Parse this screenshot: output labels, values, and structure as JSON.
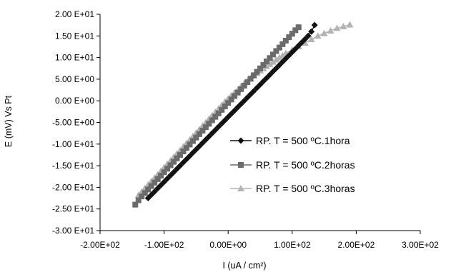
{
  "chart_data": {
    "type": "line",
    "xlabel": "I (uA / cm²)",
    "ylabel": "E (mV) Vs Pt",
    "xlim": [
      -200,
      300
    ],
    "ylim": [
      -30,
      20
    ],
    "x_ticks": [
      -200,
      -100,
      0,
      100,
      200,
      300
    ],
    "y_ticks": [
      20,
      15,
      10,
      5,
      0,
      -5,
      -10,
      -15,
      -20,
      -25,
      -30
    ],
    "x_tick_labels": [
      "-2.00E+02",
      "-1.00E+02",
      "0.00E+00",
      "1.00E+02",
      "2.00E+02",
      "3.00E+02"
    ],
    "y_tick_labels": [
      "2.00 E+01",
      "1.50 E+01",
      "1.00 E+01",
      "5.00 E+00",
      "0.00 E+00",
      "-5.00 E+00",
      "-1.00 E+01",
      "-1.50 E+01",
      "-2.00 E+01",
      "-2.50 E+01",
      "-3.00 E+01"
    ],
    "grid": false,
    "legend_position": "right",
    "series": [
      {
        "name": "RP. T = 500 ºC.1hora",
        "marker": "diamond",
        "color": "#111111",
        "x": [
          -125,
          -120,
          -115,
          -110,
          -105,
          -100,
          -95,
          -90,
          -85,
          -80,
          -75,
          -70,
          -65,
          -60,
          -55,
          -50,
          -45,
          -40,
          -35,
          -30,
          -25,
          -20,
          -15,
          -10,
          -5,
          0,
          5,
          10,
          15,
          20,
          25,
          30,
          35,
          40,
          45,
          50,
          55,
          60,
          65,
          70,
          75,
          80,
          85,
          90,
          95,
          100,
          105,
          110,
          115,
          120,
          125,
          130,
          135
        ],
        "y": [
          -22.5,
          -21.75,
          -21.0,
          -20.25,
          -19.5,
          -18.75,
          -18.0,
          -17.25,
          -16.5,
          -15.75,
          -15.0,
          -14.25,
          -13.5,
          -12.75,
          -12.0,
          -11.25,
          -10.5,
          -9.75,
          -9.0,
          -8.25,
          -7.5,
          -6.75,
          -6.0,
          -5.25,
          -4.5,
          -3.75,
          -3.0,
          -2.25,
          -1.5,
          -0.75,
          0.0,
          0.75,
          1.5,
          2.25,
          3.0,
          3.75,
          4.5,
          5.25,
          6.0,
          6.75,
          7.5,
          8.25,
          9.0,
          9.75,
          10.5,
          11.25,
          12.0,
          12.75,
          13.5,
          14.25,
          15.0,
          16.0,
          17.5
        ]
      },
      {
        "name": "RP. T = 500 ºC.2horas",
        "marker": "square",
        "color": "#6b6b6b",
        "x": [
          -145,
          -140,
          -135,
          -130,
          -125,
          -120,
          -115,
          -110,
          -105,
          -100,
          -95,
          -90,
          -85,
          -80,
          -75,
          -70,
          -65,
          -60,
          -55,
          -50,
          -45,
          -40,
          -35,
          -30,
          -25,
          -20,
          -15,
          -10,
          -5,
          0,
          5,
          10,
          15,
          20,
          25,
          30,
          35,
          40,
          45,
          50,
          55,
          60,
          65,
          70,
          75,
          80,
          85,
          90,
          95,
          100,
          105,
          110
        ],
        "y": [
          -24.0,
          -23.0,
          -22.1,
          -21.3,
          -20.5,
          -19.7,
          -18.9,
          -18.1,
          -17.3,
          -16.5,
          -15.7,
          -14.9,
          -14.1,
          -13.3,
          -12.5,
          -11.7,
          -10.9,
          -10.1,
          -9.3,
          -8.5,
          -7.7,
          -6.9,
          -6.1,
          -5.3,
          -4.5,
          -3.7,
          -2.9,
          -2.1,
          -1.3,
          -0.5,
          0.3,
          1.1,
          1.9,
          2.7,
          3.5,
          4.3,
          5.1,
          5.9,
          6.7,
          7.5,
          8.3,
          9.1,
          9.9,
          10.7,
          11.5,
          12.3,
          13.1,
          13.9,
          14.7,
          15.5,
          16.3,
          17.0
        ]
      },
      {
        "name": "RP. T = 500 ºC.3horas",
        "marker": "triangle",
        "color": "#b3b3b3",
        "x": [
          -140,
          -135,
          -130,
          -125,
          -120,
          -115,
          -110,
          -105,
          -100,
          -95,
          -90,
          -85,
          -80,
          -75,
          -70,
          -65,
          -60,
          -55,
          -50,
          -45,
          -40,
          -35,
          -30,
          -25,
          -20,
          -15,
          -10,
          -5,
          0,
          5,
          10,
          15,
          20,
          25,
          30,
          35,
          40,
          45,
          50,
          55,
          60,
          65,
          70,
          75,
          80,
          85,
          90,
          100,
          110,
          120,
          130,
          140,
          150,
          160,
          170,
          180,
          190
        ],
        "y": [
          -21.8,
          -21.0,
          -20.2,
          -19.4,
          -18.6,
          -17.8,
          -17.0,
          -16.2,
          -15.4,
          -14.6,
          -13.8,
          -13.0,
          -12.2,
          -11.4,
          -10.6,
          -9.8,
          -9.0,
          -8.2,
          -7.4,
          -6.6,
          -5.8,
          -5.0,
          -4.2,
          -3.4,
          -2.6,
          -1.8,
          -1.0,
          -0.2,
          0.5,
          1.2,
          1.9,
          2.6,
          3.3,
          4.0,
          4.6,
          5.2,
          5.8,
          6.4,
          7.0,
          7.5,
          8.0,
          8.5,
          9.0,
          9.5,
          10.0,
          10.5,
          11.0,
          11.8,
          12.6,
          13.4,
          14.2,
          15.0,
          15.6,
          16.2,
          16.8,
          17.2,
          17.6
        ]
      }
    ]
  }
}
